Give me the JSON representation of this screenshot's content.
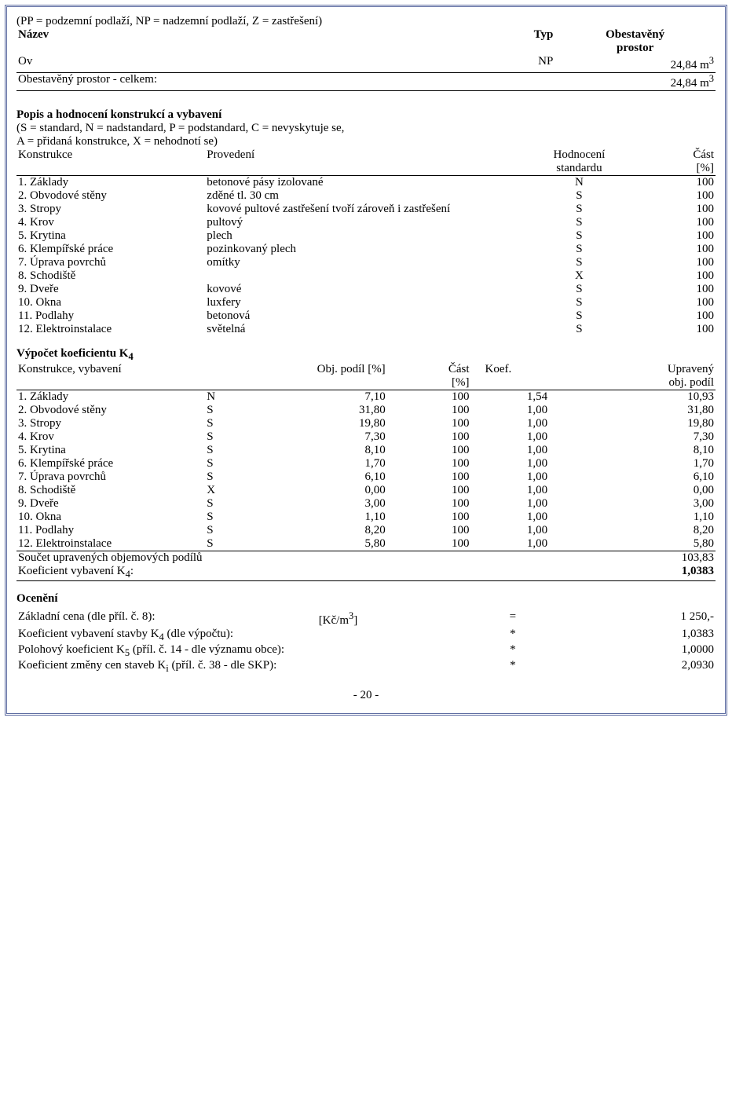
{
  "header": {
    "note": "(PP = podzemní podlaží, NP = nadzemní podlaží, Z = zastřešení)",
    "col1": "Název",
    "col2": "Typ",
    "col3_1": "Obestavěný",
    "col3_2": "prostor",
    "row_name": "Ov",
    "row_typ": "NP",
    "row_val": "24,84 m",
    "row_exp": "3",
    "sum_label": "Obestavěný prostor - celkem:",
    "sum_val": "24,84 m",
    "sum_exp": "3"
  },
  "sec1": {
    "title": "Popis a hodnocení konstrukcí a vybavení",
    "note1": "(S = standard, N = nadstandard, P = podstandard, C = nevyskytuje se,",
    "note2": "A = přidaná konstrukce, X = nehodnotí se)",
    "h1": "Konstrukce",
    "h2": "Provedení",
    "h3a": "Hodnocení",
    "h3b": "standardu",
    "h4a": "Část",
    "h4b": "[%]",
    "rows": [
      {
        "a": "1. Základy",
        "b": "betonové pásy izolované",
        "c": "N",
        "d": "100"
      },
      {
        "a": "2. Obvodové stěny",
        "b": "zděné tl. 30 cm",
        "c": "S",
        "d": "100"
      },
      {
        "a": "3. Stropy",
        "b": "kovové pultové zastřešení tvoří zároveň i zastřešení",
        "c": "S",
        "d": "100"
      },
      {
        "a": "4. Krov",
        "b": "pultový",
        "c": "S",
        "d": "100"
      },
      {
        "a": "5. Krytina",
        "b": "plech",
        "c": "S",
        "d": "100"
      },
      {
        "a": "6. Klempířské práce",
        "b": "pozinkovaný plech",
        "c": "S",
        "d": "100"
      },
      {
        "a": "7. Úprava povrchů",
        "b": "omítky",
        "c": "S",
        "d": "100"
      },
      {
        "a": "8. Schodiště",
        "b": "",
        "c": "X",
        "d": "100"
      },
      {
        "a": "9. Dveře",
        "b": "kovové",
        "c": "S",
        "d": "100"
      },
      {
        "a": "10. Okna",
        "b": "luxfery",
        "c": "S",
        "d": "100"
      },
      {
        "a": "11. Podlahy",
        "b": "betonová",
        "c": "S",
        "d": "100"
      },
      {
        "a": "12. Elektroinstalace",
        "b": "světelná",
        "c": "S",
        "d": "100"
      }
    ]
  },
  "sec2": {
    "title": "Výpočet koeficientu K",
    "title_sub": "4",
    "h1": "Konstrukce, vybavení",
    "h2": "Obj. podíl [%]",
    "h3a": "Část",
    "h3b": "[%]",
    "h4": "Koef.",
    "h5a": "Upravený",
    "h5b": "obj. podíl",
    "rows": [
      {
        "a": "1. Základy",
        "s": "N",
        "b": "7,10",
        "c": "100",
        "d": "1,54",
        "e": "10,93"
      },
      {
        "a": "2. Obvodové stěny",
        "s": "S",
        "b": "31,80",
        "c": "100",
        "d": "1,00",
        "e": "31,80"
      },
      {
        "a": "3. Stropy",
        "s": "S",
        "b": "19,80",
        "c": "100",
        "d": "1,00",
        "e": "19,80"
      },
      {
        "a": "4. Krov",
        "s": "S",
        "b": "7,30",
        "c": "100",
        "d": "1,00",
        "e": "7,30"
      },
      {
        "a": "5. Krytina",
        "s": "S",
        "b": "8,10",
        "c": "100",
        "d": "1,00",
        "e": "8,10"
      },
      {
        "a": "6. Klempířské práce",
        "s": "S",
        "b": "1,70",
        "c": "100",
        "d": "1,00",
        "e": "1,70"
      },
      {
        "a": "7. Úprava povrchů",
        "s": "S",
        "b": "6,10",
        "c": "100",
        "d": "1,00",
        "e": "6,10"
      },
      {
        "a": "8. Schodiště",
        "s": "X",
        "b": "0,00",
        "c": "100",
        "d": "1,00",
        "e": "0,00"
      },
      {
        "a": "9. Dveře",
        "s": "S",
        "b": "3,00",
        "c": "100",
        "d": "1,00",
        "e": "3,00"
      },
      {
        "a": "10. Okna",
        "s": "S",
        "b": "1,10",
        "c": "100",
        "d": "1,00",
        "e": "1,10"
      },
      {
        "a": "11. Podlahy",
        "s": "S",
        "b": "8,20",
        "c": "100",
        "d": "1,00",
        "e": "8,20"
      },
      {
        "a": "12. Elektroinstalace",
        "s": "S",
        "b": "5,80",
        "c": "100",
        "d": "1,00",
        "e": "5,80"
      }
    ],
    "sumrow1a": "Součet upravených objemových podílů",
    "sumrow1b": "103,83",
    "sumrow2a": "Koeficient vybavení K",
    "sumrow2sub": "4",
    "sumrow2colon": ":",
    "sumrow2b": "1,0383"
  },
  "sec3": {
    "title": "Ocenění",
    "rows": [
      {
        "a": "Základní cena (dle příl. č. 8):",
        "m": "[Kč/m",
        "m_sup": "3",
        "m_close": "]",
        "op": "=",
        "v": "1 250,-"
      },
      {
        "a": "Koeficient vybavení stavby K",
        "sub": "4",
        "a2": " (dle výpočtu):",
        "op": "*",
        "v": "1,0383"
      },
      {
        "a": "Polohový koeficient K",
        "sub": "5",
        "a2": " (příl. č. 14 - dle významu obce):",
        "op": "*",
        "v": "1,0000"
      },
      {
        "a": "Koeficient změny cen staveb K",
        "sub": "i",
        "a2": " (příl. č. 38 - dle SKP):",
        "op": "*",
        "v": "2,0930"
      }
    ]
  },
  "page_number": "- 20 -"
}
